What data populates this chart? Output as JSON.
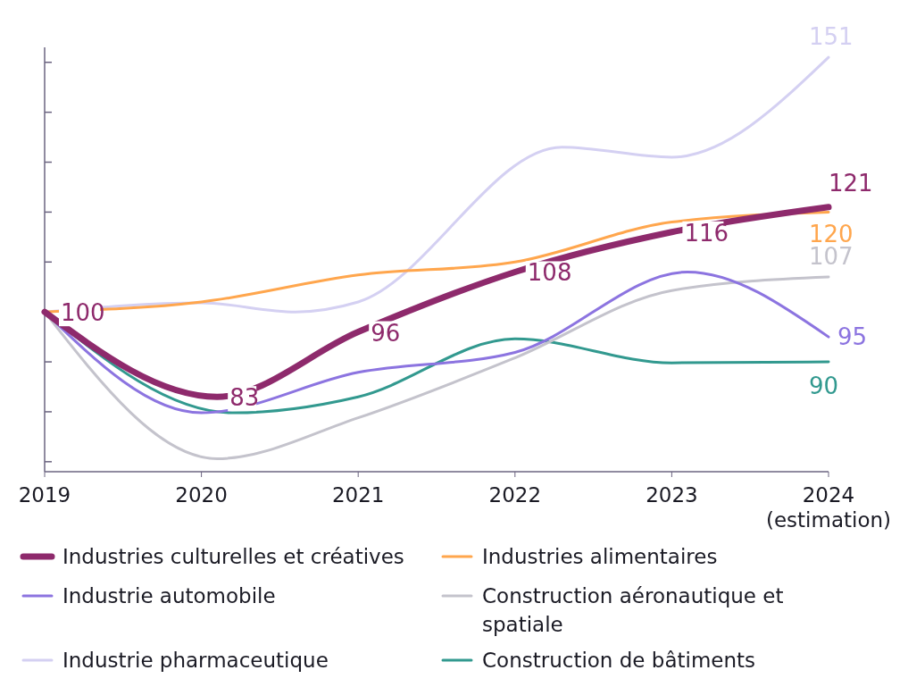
{
  "chart_data": {
    "type": "line",
    "xlim": [
      2019,
      2024
    ],
    "xticks": [
      2019,
      2020,
      2021,
      2022,
      2023,
      {
        "value": 2024,
        "label": "2024\n(estimation)"
      }
    ],
    "ylim": [
      68,
      153
    ],
    "yticks": [
      {
        "value": 70,
        "label": null
      },
      {
        "value": 80,
        "label": null
      },
      {
        "value": 90,
        "label": null
      },
      {
        "value": 100,
        "label": null
      },
      {
        "value": 110,
        "label": null
      },
      {
        "value": 120,
        "label": null
      },
      {
        "value": 130,
        "label": null
      },
      {
        "value": 140,
        "label": null
      },
      {
        "value": 150,
        "label": null
      }
    ],
    "tick_labels": "x",
    "grid": false,
    "legend": "bottom",
    "marker": "none",
    "line_style": "solid",
    "series": [
      {
        "name": "Industries culturelles et créatives",
        "color": "#8e2a6c",
        "x": [
          2019,
          2020.1,
          2021,
          2022,
          2023,
          2024
        ],
        "values": [
          100,
          83,
          96,
          108,
          116,
          121
        ],
        "value_labels": [
          "100",
          "83",
          "96",
          "108",
          "116",
          "121"
        ]
      },
      {
        "name": "Industries alimentaires",
        "color": "#ffa64d",
        "x": [
          2019,
          2020,
          2021,
          2022,
          2023,
          2024
        ],
        "values": [
          100,
          102,
          107.4,
          110,
          118,
          120
        ],
        "value_labels": [
          null,
          null,
          null,
          null,
          null,
          "120"
        ]
      },
      {
        "name": "Industrie automobile",
        "color": "#8c74e0",
        "x": [
          2019,
          2020,
          2021,
          2022,
          2023.1,
          2024
        ],
        "values": [
          100,
          79.8,
          87.9,
          91.9,
          108,
          95
        ],
        "value_labels": [
          null,
          null,
          null,
          null,
          null,
          "95"
        ]
      },
      {
        "name": "Construction aéronautique et spatiale",
        "color": "#c4c3cc",
        "x": [
          2019,
          2020.1,
          2021,
          2022,
          2023,
          2024
        ],
        "values": [
          100,
          70.6,
          78.8,
          90.8,
          104.3,
          107
        ],
        "value_labels": [
          null,
          null,
          null,
          null,
          null,
          "107"
        ]
      },
      {
        "name": "Industrie pharmaceutique",
        "color": "#d4d0f2",
        "x": [
          2019,
          2020,
          2020.6,
          2021,
          2022.3,
          2023,
          2024
        ],
        "values": [
          100,
          101.8,
          100,
          102,
          133,
          131,
          151
        ],
        "value_labels": [
          null,
          null,
          null,
          null,
          null,
          null,
          "151"
        ]
      },
      {
        "name": "Construction de bâtiments",
        "color": "#32998f",
        "x": [
          2019,
          2020.2,
          2021,
          2022,
          2023,
          2024
        ],
        "values": [
          100,
          79.8,
          83,
          94.6,
          89.8,
          90
        ],
        "value_labels": [
          null,
          null,
          null,
          null,
          null,
          "90"
        ]
      }
    ]
  }
}
